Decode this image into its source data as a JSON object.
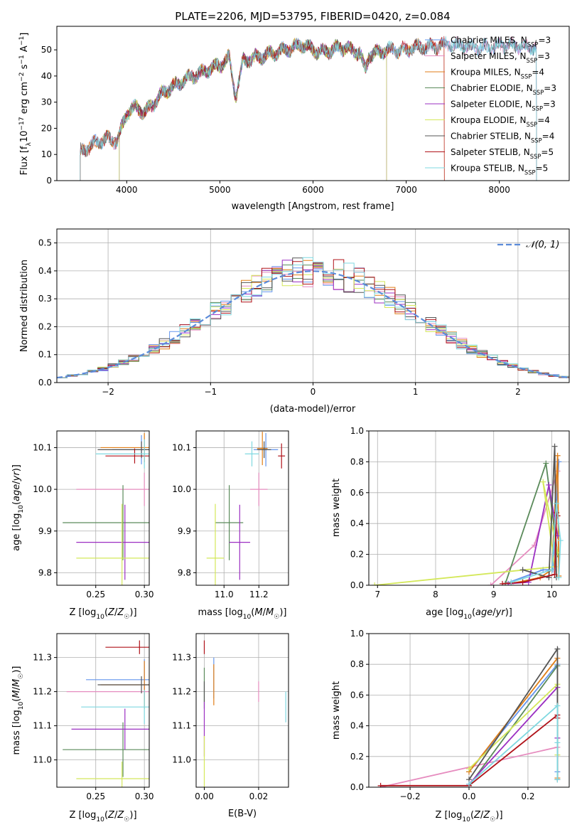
{
  "colors": {
    "Chabrier MILES": "#6495ed",
    "Salpeter MILES": "#e68cbf",
    "Kroupa MILES": "#e07e17",
    "Chabrier ELODIE": "#5a8a5a",
    "Salpeter ELODIE": "#9b2fc2",
    "Kroupa ELODIE": "#d4e85a",
    "Chabrier STELIB": "#555555",
    "Salpeter STELIB": "#b0131a",
    "Kroupa STELIB": "#7fd8e0"
  },
  "chart_data": [
    {
      "id": "spectrum",
      "type": "line",
      "title": "PLATE=2206, MJD=53795, FIBERID=0420, z=0.084",
      "xlabel": "wavelength [Angstrom, rest frame]",
      "ylabel": "Flux [f_λ 10^-17 erg cm^-2 s^-1 A^-1]",
      "xlim": [
        3250,
        8750
      ],
      "ylim": [
        0,
        59
      ],
      "xticks": [
        4000,
        5000,
        6000,
        7000,
        8000
      ],
      "yticks": [
        0,
        10,
        20,
        30,
        40,
        50
      ],
      "grid": false,
      "legend_position": "upper right",
      "x": [
        3500,
        3600,
        3700,
        3800,
        3900,
        4000,
        4100,
        4200,
        4300,
        4400,
        4500,
        4600,
        4700,
        4800,
        4900,
        5000,
        5100,
        5170,
        5250,
        5400,
        5500,
        5600,
        5700,
        5800,
        5900,
        6000,
        6100,
        6200,
        6300,
        6400,
        6500,
        6563,
        6600,
        6700,
        6800,
        6900,
        7000,
        7100,
        7200,
        7300,
        7400,
        7500,
        7700,
        7900,
        8100,
        8300
      ],
      "y": [
        11,
        13,
        15,
        16,
        15,
        26,
        28,
        26,
        30,
        34,
        36,
        38,
        40,
        41,
        43,
        44,
        47,
        32,
        46,
        47,
        48,
        49,
        50,
        51,
        52,
        50,
        49,
        50,
        51,
        50,
        49,
        42,
        48,
        49,
        50,
        50,
        50,
        51,
        51,
        51,
        52,
        52,
        51,
        51,
        52,
        51
      ],
      "series": [
        {
          "name": "Chabrier MILES, N_SSP=3",
          "cutoff": [
            3500,
            8400
          ]
        },
        {
          "name": "Salpeter MILES, N_SSP=3",
          "cutoff": [
            3500,
            8400
          ]
        },
        {
          "name": "Kroupa MILES, N_SSP=4",
          "cutoff": [
            3500,
            7410
          ]
        },
        {
          "name": "Chabrier ELODIE, N_SSP=3",
          "cutoff": [
            3920,
            6790
          ]
        },
        {
          "name": "Salpeter ELODIE, N_SSP=3",
          "cutoff": [
            3920,
            6790
          ]
        },
        {
          "name": "Kroupa ELODIE, N_SSP=4",
          "cutoff": [
            3920,
            6790
          ]
        },
        {
          "name": "Chabrier STELIB, N_SSP=4",
          "cutoff": [
            3500,
            8400
          ]
        },
        {
          "name": "Salpeter STELIB, N_SSP=5",
          "cutoff": [
            3500,
            7410
          ]
        },
        {
          "name": "Kroupa STELIB, N_SSP=5",
          "cutoff": [
            3500,
            8400
          ]
        }
      ]
    },
    {
      "id": "residuals",
      "type": "histogram",
      "xlabel": "(data-model)/error",
      "ylabel": "Normed distribution",
      "xlim": [
        -2.5,
        2.5
      ],
      "ylim": [
        0,
        0.55
      ],
      "xticks": [
        -2,
        -1,
        0,
        1,
        2
      ],
      "yticks": [
        0.0,
        0.1,
        0.2,
        0.3,
        0.4,
        0.5
      ],
      "grid": true,
      "bin_edges_range": [
        -2.5,
        2.5
      ],
      "bin_width": 0.1,
      "legend_position": "upper right",
      "reference": {
        "name": "𝒩(0, 1)",
        "mean": 0,
        "sigma": 1
      }
    },
    {
      "id": "age-vs-Z",
      "type": "errorbar",
      "xlabel": "Z [log10(Z/Z☉)]",
      "ylabel": "age [log10(age/yr)]",
      "xlim": [
        0.21,
        0.305
      ],
      "ylim": [
        9.77,
        10.14
      ],
      "xticks": [
        0.25,
        0.3
      ],
      "yticks": [
        9.8,
        9.9,
        10.0,
        10.1
      ],
      "grid": true,
      "points": [
        {
          "x": 0.297,
          "y": 10.095,
          "xerr": 0.03,
          "yerr": 0.035
        },
        {
          "x": 0.3,
          "y": 10.0,
          "xerr": 0.07,
          "yerr": 0.04
        },
        {
          "x": 0.3,
          "y": 10.1,
          "xerr": 0.045,
          "yerr": 0.035
        },
        {
          "x": 0.278,
          "y": 9.92,
          "xerr": 0.062,
          "yerr": 0.09
        },
        {
          "x": 0.28,
          "y": 9.873,
          "xerr": 0.05,
          "yerr": 0.09
        },
        {
          "x": 0.277,
          "y": 9.835,
          "xerr": 0.047,
          "yerr": 0.13
        },
        {
          "x": 0.297,
          "y": 10.095,
          "xerr": 0.045,
          "yerr": 0.02
        },
        {
          "x": 0.29,
          "y": 10.08,
          "xerr": 0.03,
          "yerr": 0.018
        },
        {
          "x": 0.3,
          "y": 10.085,
          "xerr": 0.05,
          "yerr": 0.035
        }
      ]
    },
    {
      "id": "age-vs-mass",
      "type": "errorbar",
      "xlabel": "mass [log10(M/M☉)]",
      "ylabel": "",
      "xlim": [
        10.84,
        11.37
      ],
      "ylim": [
        9.77,
        10.14
      ],
      "xticks": [
        11.0,
        11.2
      ],
      "yticks": [
        9.8,
        9.9,
        10.0,
        10.1
      ],
      "grid": true,
      "points": [
        {
          "x": 11.24,
          "y": 10.095,
          "xerr": 0.07,
          "yerr": 0.04
        },
        {
          "x": 11.2,
          "y": 10.0,
          "xerr": 0.05,
          "yerr": 0.04
        },
        {
          "x": 11.22,
          "y": 10.098,
          "xerr": 0.03,
          "yerr": 0.04
        },
        {
          "x": 11.03,
          "y": 9.92,
          "xerr": 0.08,
          "yerr": 0.09
        },
        {
          "x": 11.09,
          "y": 9.873,
          "xerr": 0.06,
          "yerr": 0.09
        },
        {
          "x": 10.95,
          "y": 9.835,
          "xerr": 0.05,
          "yerr": 0.13
        },
        {
          "x": 11.23,
          "y": 10.095,
          "xerr": 0.04,
          "yerr": 0.02
        },
        {
          "x": 11.33,
          "y": 10.08,
          "xerr": 0.02,
          "yerr": 0.03
        },
        {
          "x": 11.16,
          "y": 10.085,
          "xerr": 0.04,
          "yerr": 0.03
        }
      ]
    },
    {
      "id": "mass-weight-vs-age",
      "type": "line",
      "xlabel": "age [log10(age/yr)]",
      "ylabel": "mass weight",
      "xlim": [
        6.85,
        10.3
      ],
      "ylim": [
        0,
        1
      ],
      "xticks": [
        7,
        8,
        9,
        10
      ],
      "yticks": [
        0.0,
        0.2,
        0.4,
        0.6,
        0.8,
        1.0
      ],
      "grid": true,
      "series": [
        {
          "x": [
            9.2,
            9.85,
            10.02,
            10.12
          ],
          "y": [
            0.01,
            0.1,
            0.1,
            0.8
          ]
        },
        {
          "x": [
            8.95,
            9.7,
            10.1
          ],
          "y": [
            0.0,
            0.26,
            0.74
          ]
        },
        {
          "x": [
            9.3,
            9.8,
            10.0,
            10.1,
            10.12
          ],
          "y": [
            0.01,
            0.05,
            0.1,
            0.84,
            0.06
          ]
        },
        {
          "x": [
            9.2,
            9.9,
            10.1
          ],
          "y": [
            0.01,
            0.79,
            0.2
          ]
        },
        {
          "x": [
            9.25,
            9.6,
            9.95,
            10.1
          ],
          "y": [
            0.01,
            0.02,
            0.65,
            0.32
          ]
        },
        {
          "x": [
            6.95,
            10.05,
            9.85,
            10.1
          ],
          "y": [
            0.0,
            0.12,
            0.67,
            0.21
          ]
        },
        {
          "x": [
            9.5,
            9.95,
            10.05,
            10.08
          ],
          "y": [
            0.1,
            0.05,
            0.9,
            0.05
          ]
        },
        {
          "x": [
            9.15,
            9.5,
            10.05,
            10.08,
            10.1
          ],
          "y": [
            0.01,
            0.02,
            0.07,
            0.47,
            0.45
          ]
        },
        {
          "x": [
            9.3,
            10.0,
            10.08,
            10.15,
            10.12
          ],
          "y": [
            0.02,
            0.1,
            0.53,
            0.29,
            0.05
          ]
        }
      ]
    },
    {
      "id": "mass-vs-Z",
      "type": "errorbar",
      "xlabel": "Z [log10(Z/Z☉)]",
      "ylabel": "mass [log10(M/M☉)]",
      "xlim": [
        0.21,
        0.305
      ],
      "ylim": [
        10.92,
        11.37
      ],
      "xticks": [
        0.25,
        0.3
      ],
      "yticks": [
        11.0,
        11.1,
        11.2,
        11.3
      ],
      "grid": true,
      "points": [
        {
          "x": 0.3,
          "y": 11.235,
          "xerr": 0.06,
          "yerr": 0.06
        },
        {
          "x": 0.3,
          "y": 11.2,
          "xerr": 0.08,
          "yerr": 0.02
        },
        {
          "x": 0.3,
          "y": 11.22,
          "xerr": 0.045,
          "yerr": 0.07
        },
        {
          "x": 0.278,
          "y": 11.03,
          "xerr": 0.062,
          "yerr": 0.08
        },
        {
          "x": 0.28,
          "y": 11.09,
          "xerr": 0.055,
          "yerr": 0.06
        },
        {
          "x": 0.277,
          "y": 10.945,
          "xerr": 0.047,
          "yerr": 0.05
        },
        {
          "x": 0.297,
          "y": 11.22,
          "xerr": 0.045,
          "yerr": 0.025
        },
        {
          "x": 0.295,
          "y": 11.33,
          "xerr": 0.035,
          "yerr": 0.02
        },
        {
          "x": 0.3,
          "y": 11.155,
          "xerr": 0.065,
          "yerr": 0.05
        }
      ]
    },
    {
      "id": "mass-vs-EBV",
      "type": "errorbar",
      "xlabel": "E(B-V)",
      "ylabel": "",
      "xlim": [
        -0.003,
        0.031
      ],
      "ylim": [
        10.92,
        11.37
      ],
      "xticks": [
        0.0,
        0.02
      ],
      "yticks": [
        11.0,
        11.1,
        11.2,
        11.3
      ],
      "grid": true,
      "points": [
        {
          "x": 0.0035,
          "y": 11.24,
          "xerr": 0,
          "yerr": 0.06
        },
        {
          "x": 0.02,
          "y": 11.2,
          "xerr": 0,
          "yerr": 0.03
        },
        {
          "x": 0.0035,
          "y": 11.22,
          "xerr": 0,
          "yerr": 0.06
        },
        {
          "x": 0.0,
          "y": 11.21,
          "xerr": 0,
          "yerr": 0.06
        },
        {
          "x": 0.0,
          "y": 11.09,
          "xerr": 0,
          "yerr": 0.08
        },
        {
          "x": 0.0,
          "y": 10.99,
          "xerr": 0,
          "yerr": 0.08
        },
        {
          "x": 0.0,
          "y": 11.2,
          "xerr": 0,
          "yerr": 0.03
        },
        {
          "x": 0.0,
          "y": 11.33,
          "xerr": 0,
          "yerr": 0.02
        },
        {
          "x": 0.03,
          "y": 11.155,
          "xerr": 0,
          "yerr": 0.045
        }
      ]
    },
    {
      "id": "mass-weight-vs-Z",
      "type": "line",
      "xlabel": "Z [log10(Z/Z☉)]",
      "ylabel": "mass weight",
      "xlim": [
        -0.34,
        0.34
      ],
      "ylim": [
        0,
        1
      ],
      "xticks": [
        -0.2,
        0.0,
        0.2
      ],
      "yticks": [
        0.0,
        0.2,
        0.4,
        0.6,
        0.8,
        1.0
      ],
      "grid": true,
      "series": [
        {
          "x": [
            0.0,
            0.3,
            0.3
          ],
          "y": [
            0.1,
            0.8,
            0.1
          ]
        },
        {
          "x": [
            -0.3,
            0.3
          ],
          "y": [
            0.0,
            0.26
          ]
        },
        {
          "x": [
            0.0,
            0.3,
            0.3
          ],
          "y": [
            0.1,
            0.84,
            0.06
          ]
        },
        {
          "x": [
            0.0,
            0.3
          ],
          "y": [
            0.01,
            0.79
          ]
        },
        {
          "x": [
            0.0,
            0.3,
            0.3
          ],
          "y": [
            0.02,
            0.65,
            0.32
          ]
        },
        {
          "x": [
            0.0,
            0.3,
            0.3
          ],
          "y": [
            0.12,
            0.67,
            0.21
          ]
        },
        {
          "x": [
            0.0,
            0.3,
            0.3
          ],
          "y": [
            0.05,
            0.9,
            0.05
          ]
        },
        {
          "x": [
            -0.3,
            0.0,
            0.3,
            0.3
          ],
          "y": [
            0.01,
            0.01,
            0.47,
            0.45
          ]
        },
        {
          "x": [
            0.0,
            0.3,
            0.3,
            0.3
          ],
          "y": [
            0.02,
            0.53,
            0.29,
            0.05
          ]
        }
      ]
    }
  ]
}
